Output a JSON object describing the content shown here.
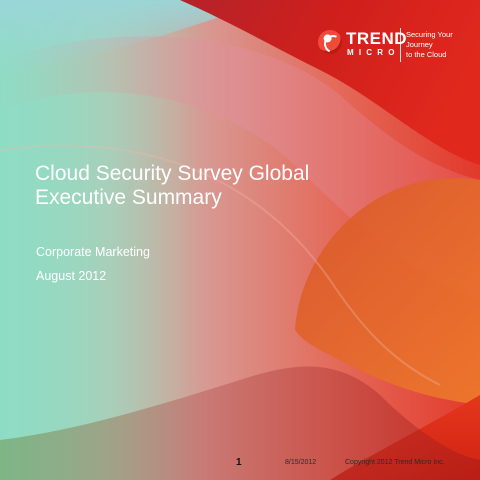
{
  "brand": {
    "logo_top": "TREND",
    "logo_bottom": "MICRO",
    "tagline_line1": "Securing Your Journey",
    "tagline_line2": "to the Cloud"
  },
  "slide": {
    "title": "Cloud Security Survey Global Executive Summary",
    "department": "Corporate Marketing",
    "date": "August 2012"
  },
  "footer": {
    "page_number": "1",
    "date": "8/15/2012",
    "copyright": "Copyright 2012 Trend Micro Inc."
  },
  "colors": {
    "red_primary": "#d3201b",
    "red_dark": "#9c1722",
    "teal_left": "#8fdcc4",
    "pink_mid": "#d97a86",
    "orange": "#e8662a"
  }
}
